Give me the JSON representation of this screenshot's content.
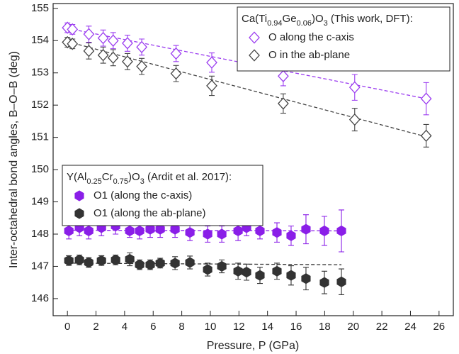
{
  "chart_data": {
    "type": "scatter",
    "xlabel": "Pressure, P (GPa)",
    "ylabel": "Inter-octahedral bond angles, B–O–B (deg)",
    "xlim": [
      -1,
      27
    ],
    "xticks": [
      0,
      2,
      4,
      6,
      8,
      10,
      12,
      14,
      16,
      18,
      20,
      22,
      24,
      26
    ],
    "ylim": [
      145.47,
      155.15
    ],
    "yticks": [
      146,
      147,
      148,
      149,
      150,
      151,
      152,
      153,
      154,
      155
    ],
    "legends": [
      {
        "title": "Ca(Ti0.94Ge0.06)O3 (This work, DFT):",
        "series": [
          0,
          1
        ],
        "position": "upper right"
      },
      {
        "title": "Y(Al0.25Cr0.75)O3 (Ardit et al. 2017):",
        "series": [
          2,
          3
        ],
        "position": "center left"
      }
    ],
    "series": [
      {
        "name": "O along the c-axis",
        "color": "#9b3cf0",
        "marker": "diamond-open",
        "x": [
          0,
          0.35,
          1.5,
          2.5,
          3.2,
          4.2,
          5.2,
          7.6,
          10.1,
          15.1,
          20.1,
          25.1
        ],
        "values": [
          154.4,
          154.35,
          154.2,
          154.08,
          154.0,
          153.92,
          153.8,
          153.6,
          153.32,
          152.9,
          152.55,
          152.2
        ],
        "errors": [
          0.15,
          0.15,
          0.25,
          0.25,
          0.25,
          0.25,
          0.25,
          0.25,
          0.3,
          0.3,
          0.4,
          0.5
        ],
        "fit": {
          "x": [
            0,
            25.1
          ],
          "values": [
            154.38,
            152.2
          ]
        }
      },
      {
        "name": "O in the ab-plane",
        "color": "#444444",
        "marker": "diamond-open",
        "x": [
          0,
          0.35,
          1.5,
          2.5,
          3.2,
          4.2,
          5.2,
          7.6,
          10.1,
          15.1,
          20.1,
          25.1
        ],
        "values": [
          153.95,
          153.9,
          153.68,
          153.55,
          153.47,
          153.35,
          153.2,
          152.98,
          152.6,
          152.05,
          151.55,
          151.05
        ],
        "errors": [
          0.15,
          0.15,
          0.25,
          0.25,
          0.25,
          0.25,
          0.25,
          0.25,
          0.3,
          0.3,
          0.35,
          0.35
        ],
        "fit": {
          "x": [
            0,
            25.1
          ],
          "values": [
            153.97,
            151.02
          ]
        }
      },
      {
        "name": "O1 (along the c-axis)",
        "color": "#8a1ee8",
        "marker": "hexagon",
        "x": [
          0.1,
          0.84,
          1.49,
          2.38,
          3.37,
          4.36,
          5.05,
          5.79,
          6.49,
          7.53,
          8.57,
          9.81,
          10.8,
          11.94,
          12.53,
          13.47,
          14.66,
          15.65,
          16.69,
          17.98,
          19.17
        ],
        "values": [
          148.1,
          148.2,
          148.1,
          148.2,
          148.25,
          148.1,
          148.1,
          148.15,
          148.15,
          148.15,
          148.05,
          148.0,
          148.0,
          148.1,
          148.2,
          148.1,
          148.05,
          147.95,
          148.15,
          148.1,
          148.1
        ],
        "errors": [
          0.25,
          0.25,
          0.25,
          0.25,
          0.25,
          0.2,
          0.25,
          0.25,
          0.25,
          0.25,
          0.25,
          0.25,
          0.25,
          0.3,
          0.25,
          0.25,
          0.3,
          0.3,
          0.45,
          0.45,
          0.65
        ],
        "fit": {
          "x": [
            0,
            19.17
          ],
          "values": [
            148.12,
            148.1
          ]
        }
      },
      {
        "name": "O1 (along the ab-plane)",
        "color": "#333333",
        "marker": "hexagon",
        "x": [
          0.1,
          0.84,
          1.49,
          2.38,
          3.37,
          4.36,
          5.05,
          5.79,
          6.49,
          7.53,
          8.57,
          9.81,
          10.8,
          11.94,
          12.53,
          13.47,
          14.66,
          15.65,
          16.69,
          17.98,
          19.17
        ],
        "values": [
          147.18,
          147.2,
          147.12,
          147.18,
          147.2,
          147.22,
          147.05,
          147.05,
          147.1,
          147.1,
          147.12,
          146.9,
          147.0,
          146.85,
          146.82,
          146.72,
          146.85,
          146.72,
          146.62,
          146.5,
          146.52
        ],
        "errors": [
          0.15,
          0.15,
          0.15,
          0.15,
          0.15,
          0.2,
          0.15,
          0.15,
          0.15,
          0.2,
          0.2,
          0.2,
          0.2,
          0.25,
          0.25,
          0.25,
          0.25,
          0.3,
          0.35,
          0.35,
          0.4
        ],
        "fit": {
          "x": [
            0,
            19.17
          ],
          "values": [
            147.1,
            147.05
          ]
        }
      }
    ]
  }
}
